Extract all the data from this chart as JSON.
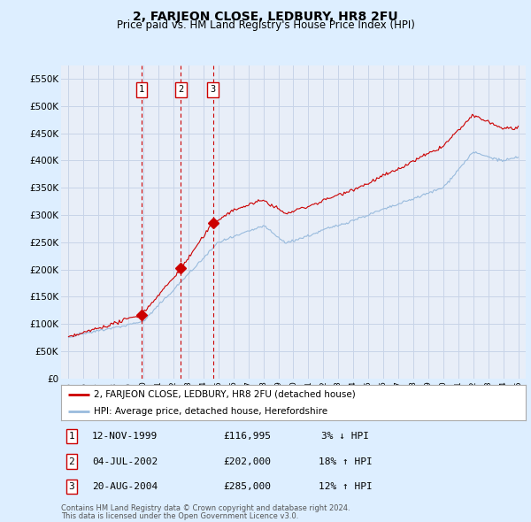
{
  "title": "2, FARJEON CLOSE, LEDBURY, HR8 2FU",
  "subtitle": "Price paid vs. HM Land Registry's House Price Index (HPI)",
  "legend_property": "2, FARJEON CLOSE, LEDBURY, HR8 2FU (detached house)",
  "legend_hpi": "HPI: Average price, detached house, Herefordshire",
  "footer1": "Contains HM Land Registry data © Crown copyright and database right 2024.",
  "footer2": "This data is licensed under the Open Government Licence v3.0.",
  "sales": [
    {
      "num": 1,
      "date": "12-NOV-1999",
      "price": 116995,
      "year": 1999.87,
      "pct": "3%",
      "dir": "↓"
    },
    {
      "num": 2,
      "date": "04-JUL-2002",
      "price": 202000,
      "year": 2002.5,
      "pct": "18%",
      "dir": "↑"
    },
    {
      "num": 3,
      "date": "20-AUG-2004",
      "price": 285000,
      "year": 2004.63,
      "pct": "12%",
      "dir": "↑"
    }
  ],
  "ylim": [
    0,
    575000
  ],
  "xlim": [
    1994.5,
    2025.5
  ],
  "yticks": [
    0,
    50000,
    100000,
    150000,
    200000,
    250000,
    300000,
    350000,
    400000,
    450000,
    500000,
    550000
  ],
  "ytick_labels": [
    "£0",
    "£50K",
    "£100K",
    "£150K",
    "£200K",
    "£250K",
    "£300K",
    "£350K",
    "£400K",
    "£450K",
    "£500K",
    "£550K"
  ],
  "xticks": [
    1995,
    1996,
    1997,
    1998,
    1999,
    2000,
    2001,
    2002,
    2003,
    2004,
    2005,
    2006,
    2007,
    2008,
    2009,
    2010,
    2011,
    2012,
    2013,
    2014,
    2015,
    2016,
    2017,
    2018,
    2019,
    2020,
    2021,
    2022,
    2023,
    2024,
    2025
  ],
  "property_color": "#cc0000",
  "hpi_color": "#99bbdd",
  "bg_color": "#ddeeff",
  "plot_bg": "#e8eef8",
  "grid_color": "#c8d4e8",
  "marker_line_color": "#cc0000",
  "sale_marker_color": "#cc0000",
  "seed": 42
}
